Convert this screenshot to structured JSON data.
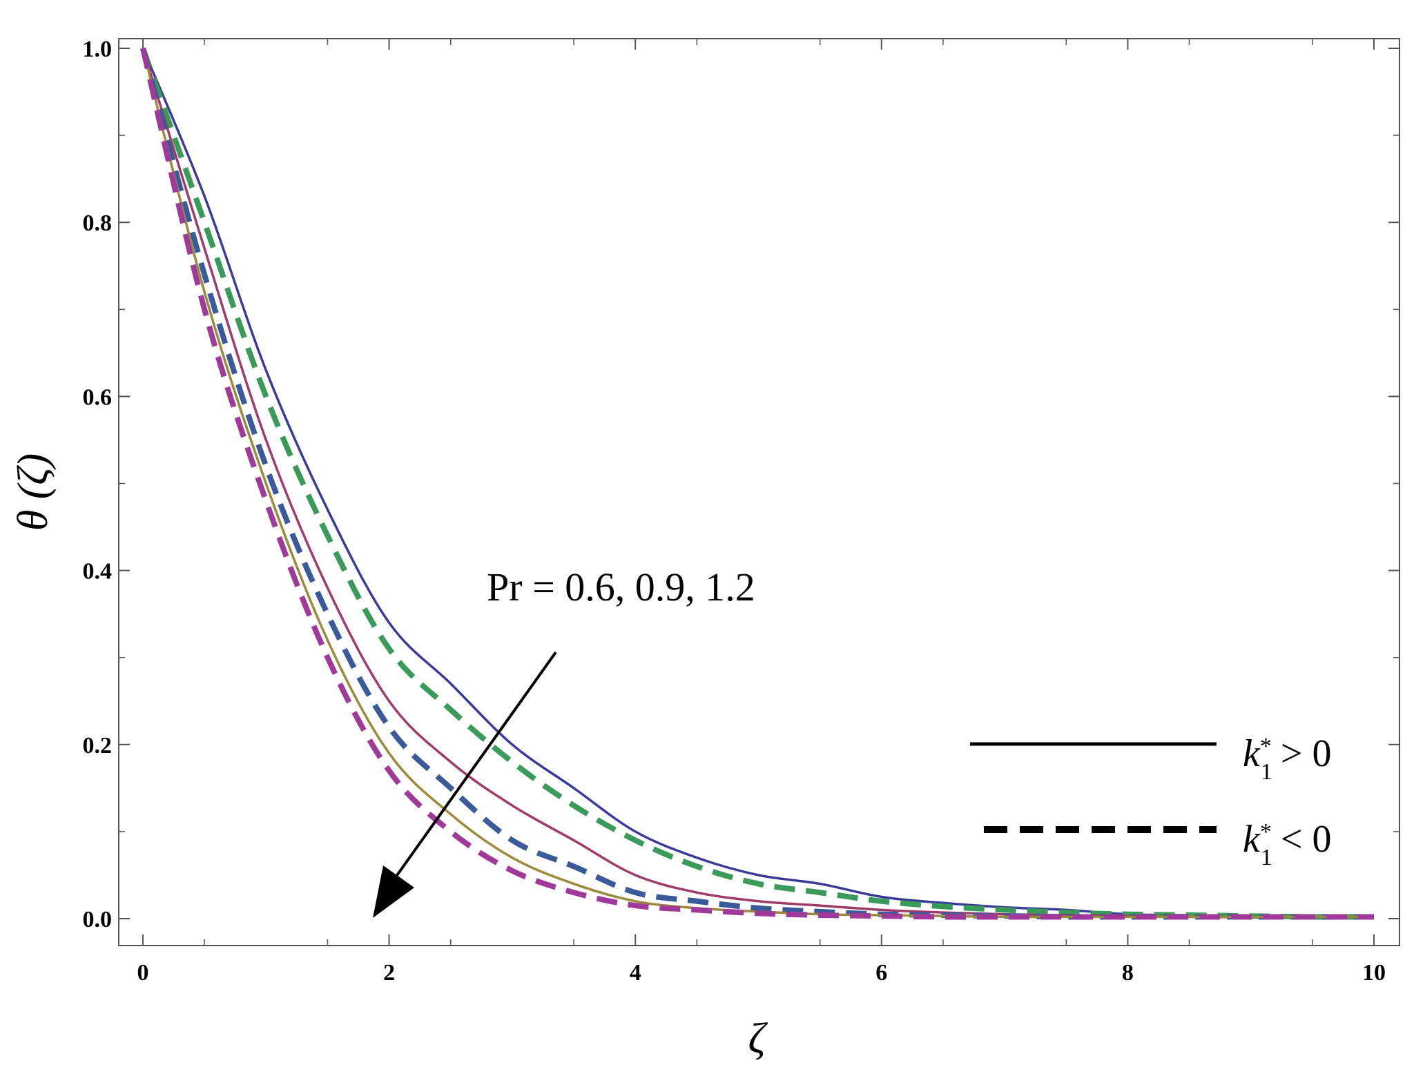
{
  "chart_data": {
    "type": "line",
    "xlabel": "ζ",
    "ylabel": "θ (ζ)",
    "xlim": [
      0,
      10
    ],
    "ylim": [
      -0.04,
      1.04
    ],
    "xticks": [
      "0",
      "2",
      "4",
      "6",
      "8",
      "10"
    ],
    "yticks": [
      "0.0",
      "0.2",
      "0.4",
      "0.6",
      "0.8",
      "1.0"
    ],
    "grid": false,
    "legend_position": "bottom-right",
    "annotation": "Pr = 0.6, 0.9, 1.2",
    "legend": [
      {
        "label_base": "k",
        "label_sup": "*",
        "label_sub": "1",
        "label_rel": "> 0",
        "style": "solid"
      },
      {
        "label_base": "k",
        "label_sup": "*",
        "label_sub": "1",
        "label_rel": "< 0",
        "style": "dashed"
      }
    ],
    "x": [
      0,
      0.5,
      1,
      1.5,
      2,
      2.5,
      3,
      3.5,
      4,
      4.5,
      5,
      5.5,
      6,
      6.5,
      7,
      7.5,
      8,
      8.5,
      9,
      9.5,
      10
    ],
    "series": [
      {
        "color": "#3a3a9a",
        "dash": "solid",
        "values": [
          1.0,
          0.83,
          0.63,
          0.47,
          0.34,
          0.27,
          0.2,
          0.15,
          0.1,
          0.07,
          0.05,
          0.04,
          0.025,
          0.018,
          0.013,
          0.01,
          0.005,
          0.004,
          0.003,
          0.002,
          0.002
        ]
      },
      {
        "color": "#3a9a5a",
        "dash": "dashed",
        "values": [
          1.0,
          0.8,
          0.6,
          0.44,
          0.31,
          0.24,
          0.18,
          0.13,
          0.09,
          0.06,
          0.04,
          0.03,
          0.02,
          0.014,
          0.01,
          0.007,
          0.005,
          0.004,
          0.003,
          0.002,
          0.002
        ]
      },
      {
        "color": "#a03a6a",
        "dash": "solid",
        "values": [
          1.0,
          0.77,
          0.55,
          0.38,
          0.25,
          0.18,
          0.13,
          0.09,
          0.05,
          0.03,
          0.02,
          0.015,
          0.01,
          0.007,
          0.005,
          0.004,
          0.003,
          0.002,
          0.002,
          0.002,
          0.002
        ]
      },
      {
        "color": "#3a5a9a",
        "dash": "dashed",
        "values": [
          1.0,
          0.74,
          0.52,
          0.35,
          0.22,
          0.15,
          0.09,
          0.06,
          0.03,
          0.02,
          0.012,
          0.008,
          0.005,
          0.004,
          0.003,
          0.002,
          0.002,
          0.002,
          0.002,
          0.002,
          0.002
        ]
      },
      {
        "color": "#9a8a3a",
        "dash": "solid",
        "values": [
          1.0,
          0.72,
          0.5,
          0.32,
          0.19,
          0.12,
          0.07,
          0.04,
          0.02,
          0.012,
          0.008,
          0.005,
          0.004,
          0.003,
          0.002,
          0.002,
          0.002,
          0.002,
          0.002,
          0.002,
          0.002
        ]
      },
      {
        "color": "#a03a9a",
        "dash": "dashed",
        "values": [
          1.0,
          0.7,
          0.48,
          0.3,
          0.17,
          0.1,
          0.055,
          0.03,
          0.015,
          0.01,
          0.006,
          0.004,
          0.003,
          0.002,
          0.002,
          0.002,
          0.002,
          0.002,
          0.002,
          0.002,
          0.002
        ]
      }
    ]
  }
}
